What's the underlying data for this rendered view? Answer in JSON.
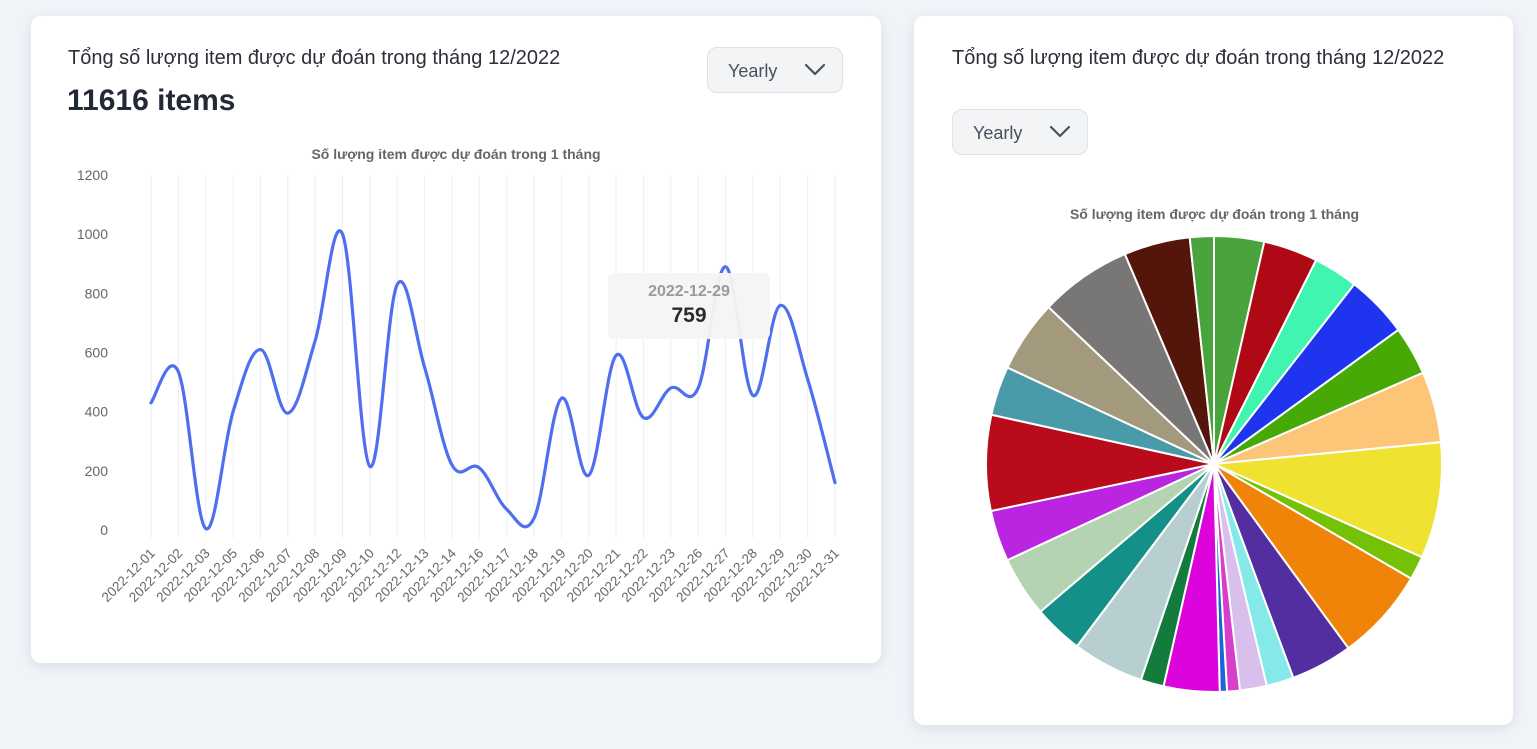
{
  "line_card": {
    "title": "Tổng số lượng item được dự đoán trong tháng 12/2022",
    "total": "11616 items",
    "dropdown": {
      "selected": "Yearly"
    },
    "tooltip": {
      "date": "2022-12-29",
      "value": "759"
    }
  },
  "pie_card": {
    "title": "Tổng số lượng item được dự đoán trong tháng 12/2022",
    "dropdown": {
      "selected": "Yearly"
    }
  },
  "chart_data": [
    {
      "type": "line",
      "title": "Số lượng item được dự đoán trong 1 tháng",
      "categories": [
        "2022-12-01",
        "2022-12-02",
        "2022-12-03",
        "2022-12-05",
        "2022-12-06",
        "2022-12-07",
        "2022-12-08",
        "2022-12-09",
        "2022-12-10",
        "2022-12-12",
        "2022-12-13",
        "2022-12-14",
        "2022-12-16",
        "2022-12-17",
        "2022-12-18",
        "2022-12-19",
        "2022-12-20",
        "2022-12-21",
        "2022-12-22",
        "2022-12-23",
        "2022-12-26",
        "2022-12-27",
        "2022-12-28",
        "2022-12-29",
        "2022-12-30",
        "2022-12-31"
      ],
      "values": [
        430,
        535,
        5,
        400,
        610,
        395,
        640,
        1000,
        215,
        830,
        550,
        220,
        210,
        70,
        40,
        445,
        185,
        590,
        380,
        480,
        480,
        890,
        455,
        759,
        510,
        160
      ],
      "yticks": [
        0,
        200,
        400,
        600,
        800,
        1000,
        1200
      ],
      "ylim": [
        0,
        1200
      ],
      "line_color": "#4f6ef0",
      "grid": "vertical"
    },
    {
      "type": "pie",
      "title": "Số lượng item được dự đoán trong 1 tháng",
      "values": [
        410,
        446,
        366,
        514,
        401,
        582,
        953,
        194,
        763,
        507,
        224,
        220,
        105,
        59,
        458,
        190,
        587,
        408,
        496,
        420,
        784,
        404,
        593,
        757,
        543,
        197
      ],
      "colors": [
        "#4aa43d",
        "#ae0915",
        "#41f4b0",
        "#1f34ee",
        "#47a906",
        "#fcc577",
        "#f0e231",
        "#75c106",
        "#f08408",
        "#532ea0",
        "#84e9e8",
        "#d9bfeb",
        "#d73ec9",
        "#1b64d9",
        "#dd03dd",
        "#137c3c",
        "#b8cfd1",
        "#149088",
        "#b3d3b2",
        "#bb24e0",
        "#b90b1c",
        "#4a9ba9",
        "#a39a7d",
        "#797776",
        "#54150b",
        "#4aa43d"
      ]
    }
  ]
}
